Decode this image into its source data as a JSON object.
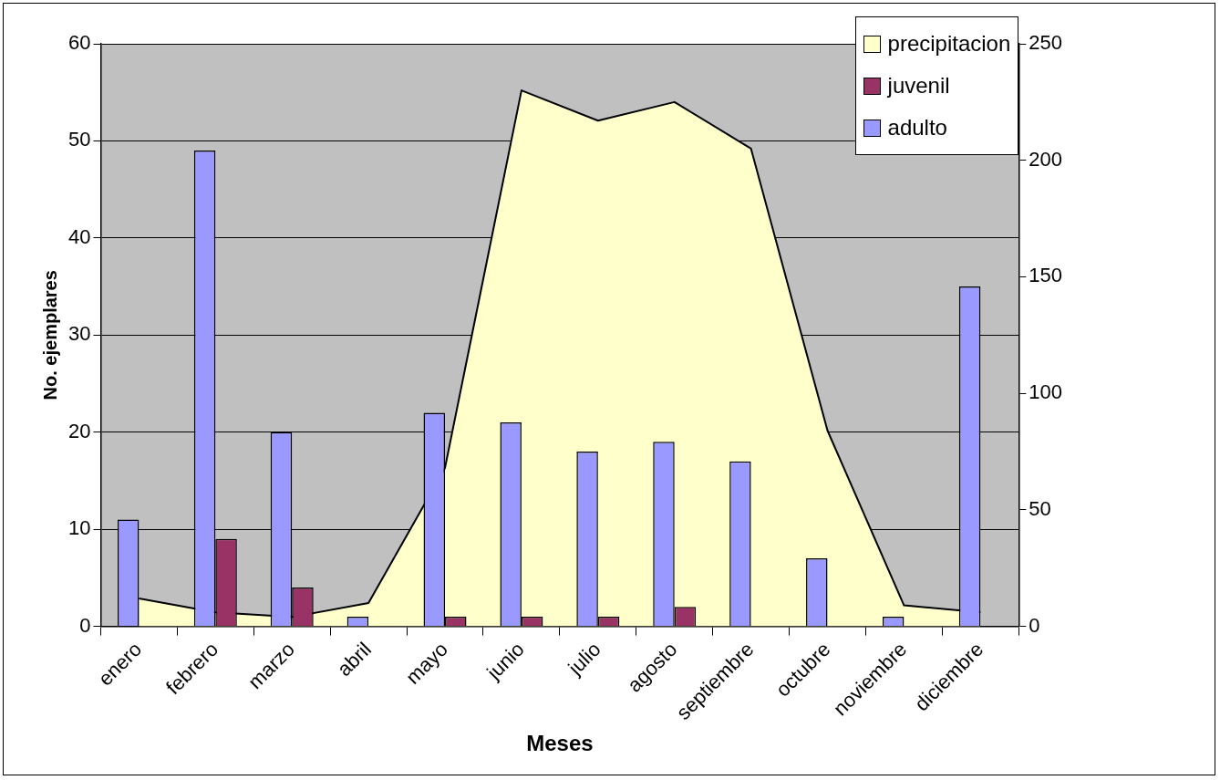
{
  "chart_data": {
    "type": "bar",
    "xlabel": "Meses",
    "ylabel": "No. ejemplares",
    "categories": [
      "enero",
      "febrero",
      "marzo",
      "abril",
      "mayo",
      "junio",
      "julio",
      "agosto",
      "septiembre",
      "octubre",
      "noviembre",
      "diciembre"
    ],
    "series": [
      {
        "name": "adulto",
        "color": "#9999ff",
        "values": [
          11,
          49,
          20,
          1,
          22,
          21,
          18,
          19,
          17,
          7,
          1,
          35
        ]
      },
      {
        "name": "juvenil",
        "color": "#993366",
        "values": [
          0,
          9,
          4,
          0,
          1,
          1,
          1,
          2,
          0,
          0,
          0,
          0
        ]
      },
      {
        "name": "precipitacion",
        "type": "area",
        "axis": "y2",
        "color": "#ffffcc",
        "values": [
          12,
          6,
          4,
          10,
          68,
          230,
          217,
          225,
          205,
          84,
          9,
          6
        ]
      }
    ],
    "ylim": [
      0,
      60
    ],
    "yticks": [
      0,
      10,
      20,
      30,
      40,
      50,
      60
    ],
    "y2lim": [
      0,
      250
    ],
    "y2ticks": [
      0,
      50,
      100,
      150,
      200,
      250
    ],
    "grid": "y",
    "legend": "top right"
  }
}
